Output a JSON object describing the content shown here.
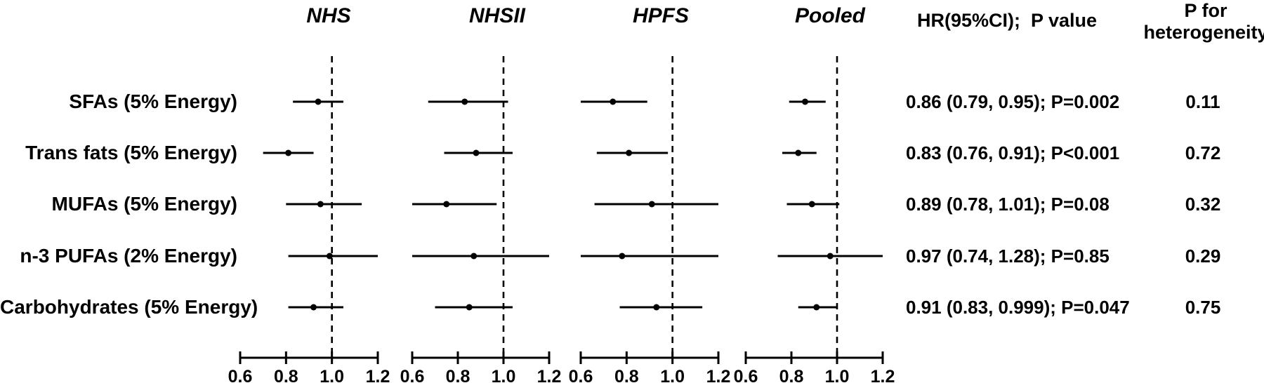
{
  "figure": {
    "hr_col_header": "HR(95%CI);  P value",
    "het_col_header_line1": "P for",
    "het_col_header_line2": "heterogeneity"
  },
  "chart_data": {
    "type": "forest",
    "x_range": [
      0.6,
      1.2
    ],
    "x_ticks": [
      "0.6",
      "0.8",
      "1.0",
      "1.2"
    ],
    "x_tick_values": [
      0.6,
      0.8,
      1.0,
      1.2
    ],
    "reference_line": 1.0,
    "panels": [
      {
        "title": "NHS"
      },
      {
        "title": "NHSII"
      },
      {
        "title": "HPFS"
      },
      {
        "title": "Pooled"
      }
    ],
    "rows": [
      {
        "label": "SFAs (5% Energy)",
        "hr_text": "0.86 (0.79, 0.95); P=0.002",
        "p_heterogeneity": "0.11",
        "estimates": [
          {
            "panel": "NHS",
            "hr": 0.94,
            "lo": 0.83,
            "hi": 1.05
          },
          {
            "panel": "NHSII",
            "hr": 0.83,
            "lo": 0.67,
            "hi": 1.02
          },
          {
            "panel": "HPFS",
            "hr": 0.74,
            "lo": 0.6,
            "hi": 0.89
          },
          {
            "panel": "Pooled",
            "hr": 0.86,
            "lo": 0.79,
            "hi": 0.95
          }
        ]
      },
      {
        "label": "Trans fats (5% Energy)",
        "hr_text": "0.83 (0.76, 0.91); P<0.001",
        "p_heterogeneity": "0.72",
        "estimates": [
          {
            "panel": "NHS",
            "hr": 0.81,
            "lo": 0.7,
            "hi": 0.92
          },
          {
            "panel": "NHSII",
            "hr": 0.88,
            "lo": 0.74,
            "hi": 1.04
          },
          {
            "panel": "HPFS",
            "hr": 0.81,
            "lo": 0.67,
            "hi": 0.98
          },
          {
            "panel": "Pooled",
            "hr": 0.83,
            "lo": 0.76,
            "hi": 0.91
          }
        ]
      },
      {
        "label": "MUFAs (5% Energy)",
        "hr_text": "0.89 (0.78, 1.01); P=0.08",
        "p_heterogeneity": "0.32",
        "estimates": [
          {
            "panel": "NHS",
            "hr": 0.95,
            "lo": 0.8,
            "hi": 1.13
          },
          {
            "panel": "NHSII",
            "hr": 0.75,
            "lo": 0.6,
            "hi": 0.97
          },
          {
            "panel": "HPFS",
            "hr": 0.91,
            "lo": 0.66,
            "hi": 1.2
          },
          {
            "panel": "Pooled",
            "hr": 0.89,
            "lo": 0.78,
            "hi": 1.01
          }
        ]
      },
      {
        "label": "n-3 PUFAs (2% Energy)",
        "hr_text": "0.97 (0.74, 1.28); P=0.85",
        "p_heterogeneity": "0.29",
        "estimates": [
          {
            "panel": "NHS",
            "hr": 0.99,
            "lo": 0.81,
            "hi": 1.2
          },
          {
            "panel": "NHSII",
            "hr": 0.87,
            "lo": 0.6,
            "hi": 1.2
          },
          {
            "panel": "HPFS",
            "hr": 0.78,
            "lo": 0.6,
            "hi": 1.2
          },
          {
            "panel": "Pooled",
            "hr": 0.97,
            "lo": 0.74,
            "hi": 1.28
          }
        ]
      },
      {
        "label": "Carbohydrates (5% Energy)",
        "hr_text": "0.91 (0.83, 0.999); P=0.047",
        "p_heterogeneity": "0.75",
        "estimates": [
          {
            "panel": "NHS",
            "hr": 0.92,
            "lo": 0.81,
            "hi": 1.05
          },
          {
            "panel": "NHSII",
            "hr": 0.85,
            "lo": 0.7,
            "hi": 1.04
          },
          {
            "panel": "HPFS",
            "hr": 0.93,
            "lo": 0.77,
            "hi": 1.13
          },
          {
            "panel": "Pooled",
            "hr": 0.91,
            "lo": 0.83,
            "hi": 0.999
          }
        ]
      }
    ]
  }
}
